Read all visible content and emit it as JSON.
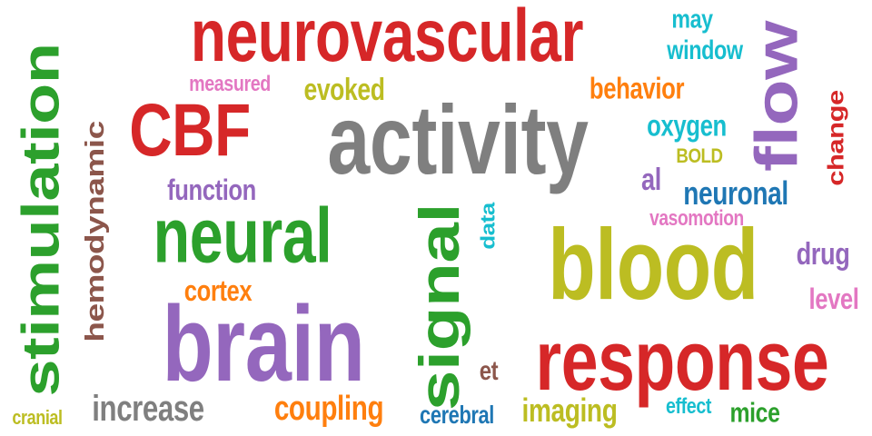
{
  "colors": {
    "red": "#d62728",
    "gray": "#7f7f7f",
    "green": "#2ca02c",
    "purple": "#9467bd",
    "olive": "#bcbd22",
    "orange": "#ff7f0e",
    "cyan": "#17becf",
    "blue": "#1f77b4",
    "brown": "#8c564b",
    "pink": "#e377c2"
  },
  "words": [
    {
      "text": "neurovascular",
      "color": "red"
    },
    {
      "text": "activity",
      "color": "gray"
    },
    {
      "text": "blood",
      "color": "olive"
    },
    {
      "text": "brain",
      "color": "purple"
    },
    {
      "text": "response",
      "color": "red"
    },
    {
      "text": "neural",
      "color": "green"
    },
    {
      "text": "stimulation",
      "color": "green"
    },
    {
      "text": "CBF",
      "color": "red"
    },
    {
      "text": "flow",
      "color": "purple"
    },
    {
      "text": "signal",
      "color": "green"
    },
    {
      "text": "hemodynamic",
      "color": "brown"
    },
    {
      "text": "increase",
      "color": "gray"
    },
    {
      "text": "coupling",
      "color": "orange"
    },
    {
      "text": "imaging",
      "color": "olive"
    },
    {
      "text": "cerebral",
      "color": "blue"
    },
    {
      "text": "neuronal",
      "color": "blue"
    },
    {
      "text": "function",
      "color": "purple"
    },
    {
      "text": "cortex",
      "color": "orange"
    },
    {
      "text": "evoked",
      "color": "olive"
    },
    {
      "text": "behavior",
      "color": "orange"
    },
    {
      "text": "oxygen",
      "color": "cyan"
    },
    {
      "text": "window",
      "color": "cyan"
    },
    {
      "text": "may",
      "color": "cyan"
    },
    {
      "text": "measured",
      "color": "pink"
    },
    {
      "text": "change",
      "color": "red"
    },
    {
      "text": "BOLD",
      "color": "olive"
    },
    {
      "text": "al",
      "color": "purple"
    },
    {
      "text": "vasomotion",
      "color": "pink"
    },
    {
      "text": "data",
      "color": "cyan"
    },
    {
      "text": "drug",
      "color": "purple"
    },
    {
      "text": "level",
      "color": "pink"
    },
    {
      "text": "et",
      "color": "brown"
    },
    {
      "text": "effect",
      "color": "cyan"
    },
    {
      "text": "mice",
      "color": "green"
    },
    {
      "text": "cranial",
      "color": "olive"
    }
  ]
}
